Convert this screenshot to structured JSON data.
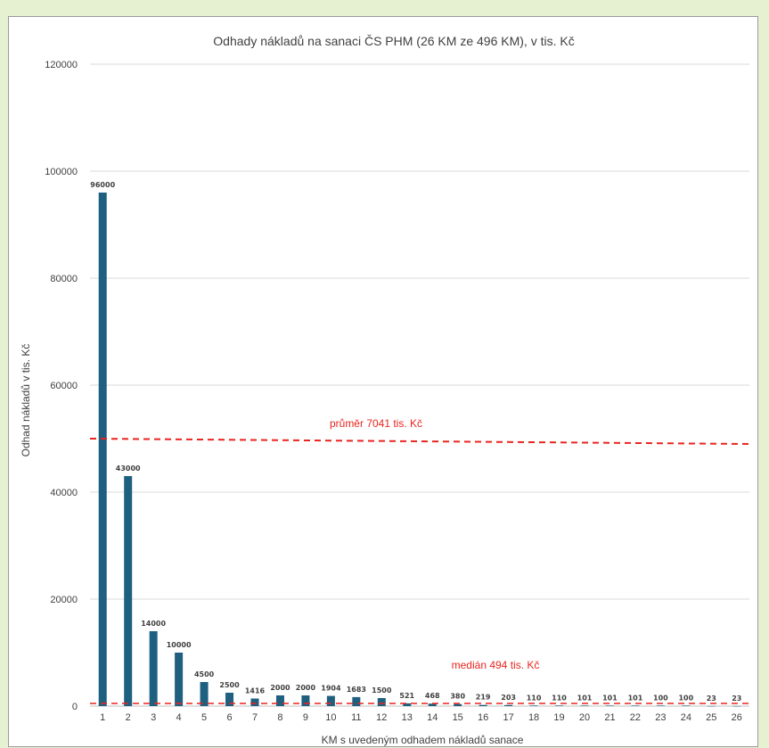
{
  "chart_data": {
    "type": "bar",
    "title": "Odhady nákladů na sanaci ČS PHM  (26 KM ze 496 KM), v tis. Kč",
    "xlabel": "KM s uvedeným odhadem nákladů sanace",
    "ylabel": "Odhad nákladů v tis. Kč",
    "categories": [
      "1",
      "2",
      "3",
      "4",
      "5",
      "6",
      "7",
      "8",
      "9",
      "10",
      "11",
      "12",
      "13",
      "14",
      "15",
      "16",
      "17",
      "18",
      "19",
      "20",
      "21",
      "22",
      "23",
      "24",
      "25",
      "26"
    ],
    "values": [
      96000,
      43000,
      14000,
      10000,
      4500,
      2500,
      1416,
      2000,
      2000,
      1904,
      1683,
      1500,
      521,
      468,
      380,
      219,
      203,
      110,
      110,
      101,
      101,
      101,
      100,
      100,
      23,
      23
    ],
    "data_labels": [
      "96000",
      "43000",
      "14000",
      "10000",
      "4500",
      "2500",
      "1416",
      "2000",
      "2000",
      "1904",
      "1683",
      "1500",
      "521",
      "468",
      "380",
      "219",
      "203",
      "110",
      "110",
      "101",
      "101",
      "101",
      "100",
      "100",
      "23",
      "23"
    ],
    "ylim": [
      0,
      120000
    ],
    "yticks": [
      0,
      20000,
      40000,
      60000,
      80000,
      100000,
      120000
    ],
    "ytick_labels": [
      "0",
      "20000",
      "40000",
      "60000",
      "80000",
      "100000",
      "120000"
    ],
    "grid": true,
    "bar_color": "#1f5f7f",
    "annotations": {
      "mean": {
        "label": "průměr 7041 tis. Kč",
        "y_start": 50000,
        "y_end": 49000,
        "color": "#e8251f"
      },
      "median": {
        "label": "medián 494 tis. Kč",
        "y": 494,
        "color": "#e8251f"
      }
    }
  }
}
